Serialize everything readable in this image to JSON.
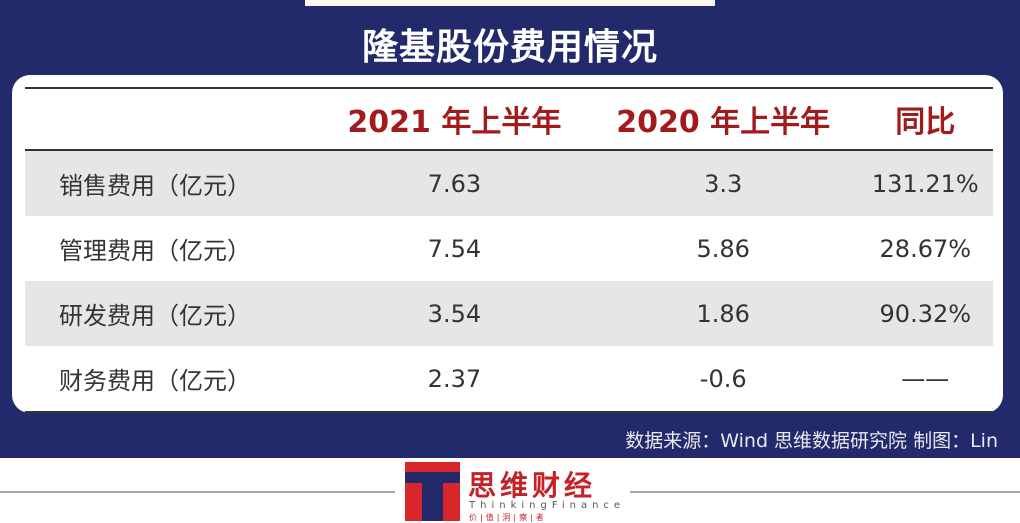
{
  "title": "隆基股份费用情况",
  "colors": {
    "navy": "#232a6b",
    "header_red": "#a31a1d",
    "shade": "#e6e6e6"
  },
  "chart_data": {
    "type": "table",
    "title": "隆基股份费用情况",
    "columns": [
      "",
      "2021 年上半年",
      "2020 年上半年",
      "同比"
    ],
    "rows": [
      [
        "销售费用（亿元）",
        "7.63",
        "3.3",
        "131.21%"
      ],
      [
        "管理费用（亿元）",
        "7.54",
        "5.86",
        "28.67%"
      ],
      [
        "研发费用（亿元）",
        "3.54",
        "1.86",
        "90.32%"
      ],
      [
        "财务费用（亿元）",
        "2.37",
        "-0.6",
        "——"
      ]
    ]
  },
  "source": "数据来源：Wind  思维数据研究院    制图：Lin",
  "logo": {
    "cn": "思维财经",
    "en": "ThinkingFinance",
    "sub": "价|值|洞|察|者"
  }
}
